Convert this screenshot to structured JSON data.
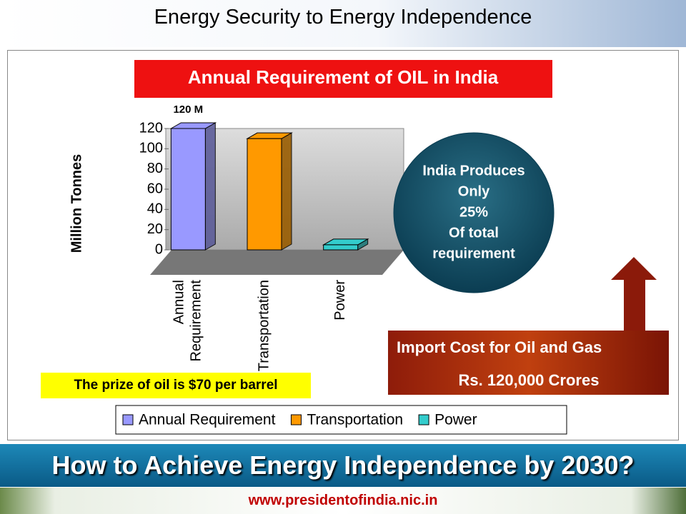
{
  "header": {
    "title": "Energy Security to Energy Independence"
  },
  "chart_data": {
    "type": "bar3d",
    "title": "Annual Requirement of OIL in India",
    "y_label": "Million Tonnes",
    "categories": [
      "Annual Requirement",
      "Transportation",
      "Power"
    ],
    "values": [
      120,
      110,
      5
    ],
    "value_labels": [
      "120 M",
      null,
      null
    ],
    "colors": [
      "#9999ff",
      "#ff9900",
      "#33cccc"
    ],
    "ylim": [
      0,
      120
    ],
    "yticks": [
      0,
      20,
      40,
      60,
      80,
      100,
      120
    ],
    "grid": false,
    "legend": "bottom"
  },
  "note": "The prize of oil is $70 per barrel",
  "circle": {
    "lines": [
      "India Produces",
      "Only",
      "25%",
      "Of total",
      "requirement"
    ]
  },
  "import_box": {
    "lines": [
      "Import Cost for Oil and Gas",
      "Rs. 120,000 Crores"
    ]
  },
  "banner": "How to Achieve Energy Independence by 2030?",
  "footer": "www.presidentofindia.nic.in"
}
